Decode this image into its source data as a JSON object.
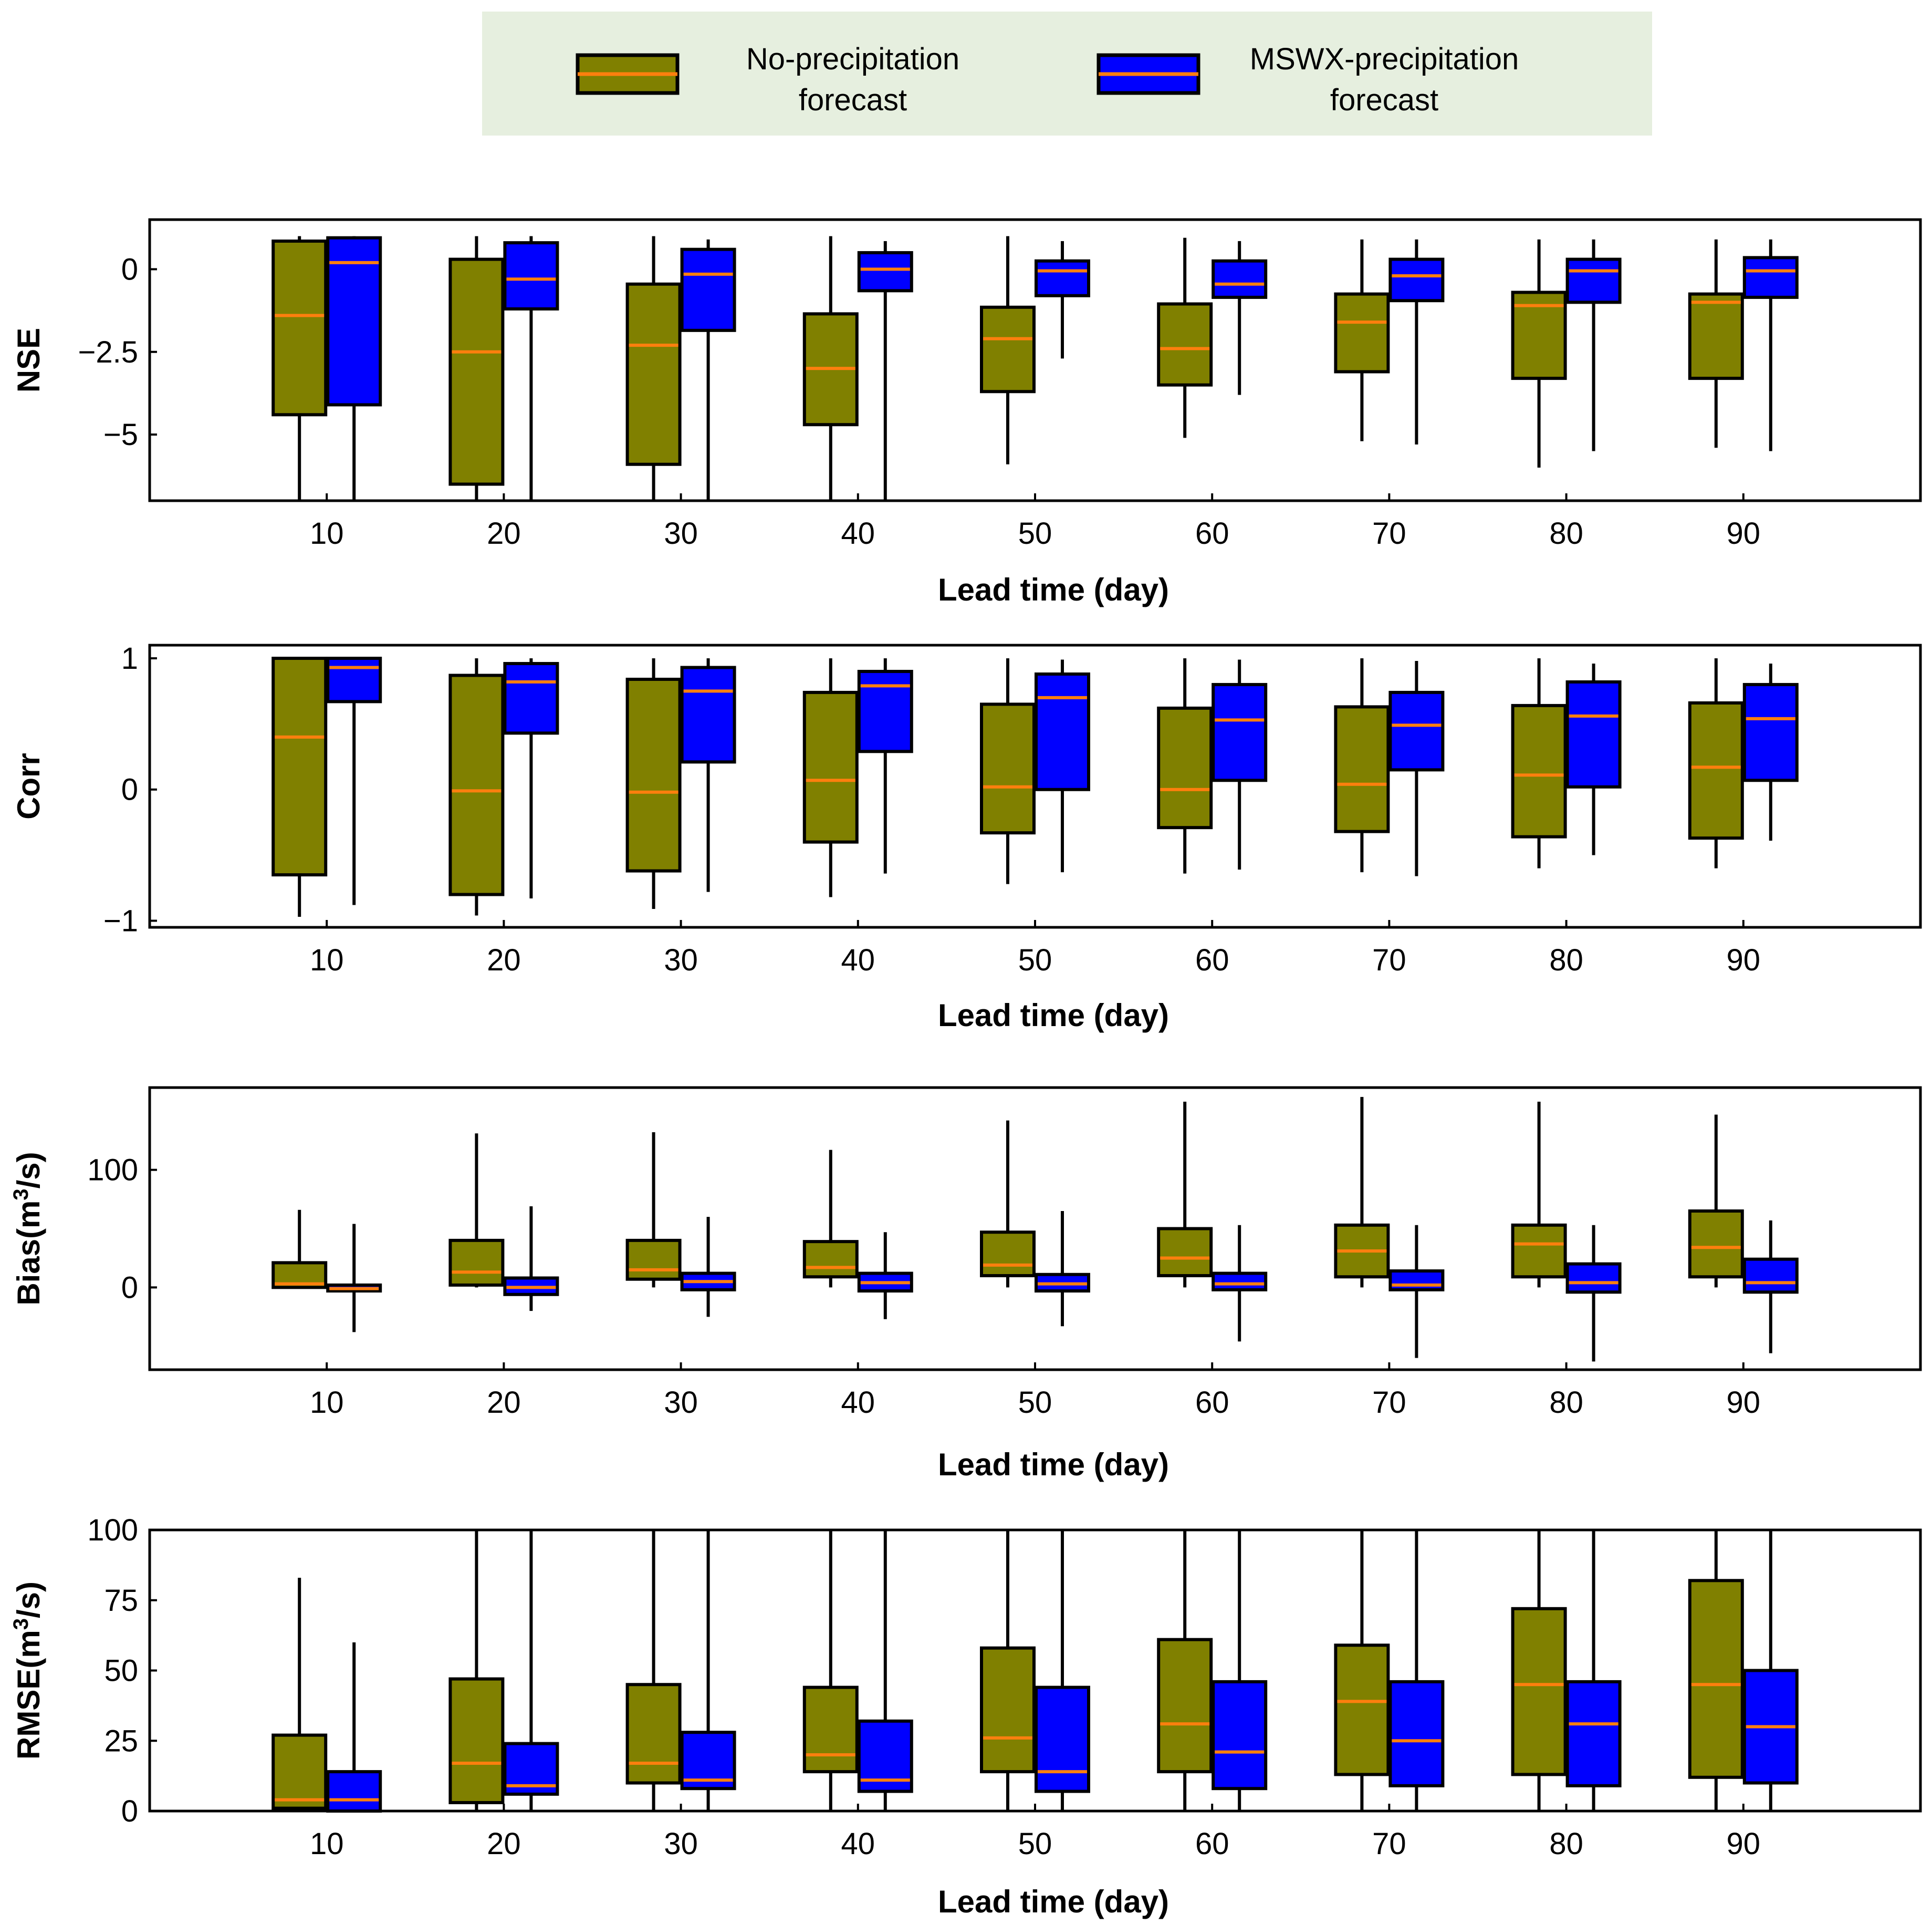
{
  "colors": {
    "no_precip": "#808000",
    "mswx": "#0000ff",
    "median": "#ff7f0e",
    "legend_bg": "#e6efdf",
    "edge": "#000000"
  },
  "legend": {
    "items": [
      {
        "key": "no_precip",
        "line1": "No-precipitation",
        "line2": "forecast"
      },
      {
        "key": "mswx",
        "line1": "MSWX-precipitation",
        "line2": "forecast"
      }
    ]
  },
  "chart_data": [
    {
      "type": "box",
      "id": "nse",
      "ylabel": "NSE",
      "xlabel": "Lead time (day)",
      "ylim": [
        -7,
        1.5
      ],
      "yticks": [
        0,
        -2.5,
        -5
      ],
      "ytick_labels": [
        "0",
        "−2.5",
        "−5"
      ],
      "xlim": [
        0,
        100
      ],
      "categories": [
        10,
        20,
        30,
        40,
        50,
        60,
        70,
        80,
        90
      ],
      "series": [
        {
          "name": "No-precipitation forecast",
          "key": "no_precip",
          "boxes": [
            {
              "low": -7.0,
              "q1": -4.4,
              "med": -1.4,
              "q3": 0.85,
              "high": 1.0
            },
            {
              "low": -7.0,
              "q1": -6.5,
              "med": -2.5,
              "q3": 0.3,
              "high": 1.0
            },
            {
              "low": -7.0,
              "q1": -5.9,
              "med": -2.3,
              "q3": -0.45,
              "high": 1.0
            },
            {
              "low": -7.0,
              "q1": -4.7,
              "med": -3.0,
              "q3": -1.35,
              "high": 1.0
            },
            {
              "low": -5.9,
              "q1": -3.7,
              "med": -2.1,
              "q3": -1.15,
              "high": 1.0
            },
            {
              "low": -5.1,
              "q1": -3.5,
              "med": -2.4,
              "q3": -1.05,
              "high": 0.95
            },
            {
              "low": -5.2,
              "q1": -3.1,
              "med": -1.6,
              "q3": -0.75,
              "high": 0.9
            },
            {
              "low": -6.0,
              "q1": -3.3,
              "med": -1.1,
              "q3": -0.7,
              "high": 0.9
            },
            {
              "low": -5.4,
              "q1": -3.3,
              "med": -1.0,
              "q3": -0.75,
              "high": 0.9
            }
          ]
        },
        {
          "name": "MSWX-precipitation forecast",
          "key": "mswx",
          "boxes": [
            {
              "low": -7.0,
              "q1": -4.1,
              "med": 0.2,
              "q3": 0.95,
              "high": 1.0
            },
            {
              "low": -7.0,
              "q1": -1.2,
              "med": -0.3,
              "q3": 0.8,
              "high": 1.0
            },
            {
              "low": -7.0,
              "q1": -1.85,
              "med": -0.15,
              "q3": 0.6,
              "high": 0.9
            },
            {
              "low": -7.0,
              "q1": -0.65,
              "med": 0.0,
              "q3": 0.5,
              "high": 0.85
            },
            {
              "low": -2.7,
              "q1": -0.8,
              "med": -0.05,
              "q3": 0.25,
              "high": 0.85
            },
            {
              "low": -3.8,
              "q1": -0.85,
              "med": -0.45,
              "q3": 0.25,
              "high": 0.85
            },
            {
              "low": -5.3,
              "q1": -0.95,
              "med": -0.2,
              "q3": 0.3,
              "high": 0.9
            },
            {
              "low": -5.5,
              "q1": -1.0,
              "med": -0.05,
              "q3": 0.3,
              "high": 0.9
            },
            {
              "low": -5.5,
              "q1": -0.85,
              "med": -0.05,
              "q3": 0.35,
              "high": 0.9
            }
          ]
        }
      ]
    },
    {
      "type": "box",
      "id": "corr",
      "ylabel": "Corr",
      "xlabel": "Lead time (day)",
      "ylim": [
        -1.05,
        1.1
      ],
      "yticks": [
        1,
        0,
        -1
      ],
      "ytick_labels": [
        "1",
        "0",
        "−1"
      ],
      "xlim": [
        0,
        100
      ],
      "categories": [
        10,
        20,
        30,
        40,
        50,
        60,
        70,
        80,
        90
      ],
      "series": [
        {
          "name": "No-precipitation forecast",
          "key": "no_precip",
          "boxes": [
            {
              "low": -0.97,
              "q1": -0.65,
              "med": 0.4,
              "q3": 1.0,
              "high": 1.0
            },
            {
              "low": -0.96,
              "q1": -0.8,
              "med": -0.01,
              "q3": 0.87,
              "high": 1.0
            },
            {
              "low": -0.91,
              "q1": -0.62,
              "med": -0.02,
              "q3": 0.84,
              "high": 1.0
            },
            {
              "low": -0.82,
              "q1": -0.4,
              "med": 0.07,
              "q3": 0.74,
              "high": 1.0
            },
            {
              "low": -0.72,
              "q1": -0.33,
              "med": 0.02,
              "q3": 0.65,
              "high": 1.0
            },
            {
              "low": -0.64,
              "q1": -0.29,
              "med": 0.0,
              "q3": 0.62,
              "high": 1.0
            },
            {
              "low": -0.63,
              "q1": -0.32,
              "med": 0.04,
              "q3": 0.63,
              "high": 1.0
            },
            {
              "low": -0.6,
              "q1": -0.36,
              "med": 0.11,
              "q3": 0.64,
              "high": 1.0
            },
            {
              "low": -0.6,
              "q1": -0.37,
              "med": 0.17,
              "q3": 0.66,
              "high": 1.0
            }
          ]
        },
        {
          "name": "MSWX-precipitation forecast",
          "key": "mswx",
          "boxes": [
            {
              "low": -0.88,
              "q1": 0.67,
              "med": 0.93,
              "q3": 1.0,
              "high": 1.0
            },
            {
              "low": -0.83,
              "q1": 0.43,
              "med": 0.82,
              "q3": 0.96,
              "high": 1.0
            },
            {
              "low": -0.78,
              "q1": 0.21,
              "med": 0.75,
              "q3": 0.93,
              "high": 1.0
            },
            {
              "low": -0.64,
              "q1": 0.29,
              "med": 0.79,
              "q3": 0.9,
              "high": 1.0
            },
            {
              "low": -0.63,
              "q1": 0.0,
              "med": 0.7,
              "q3": 0.88,
              "high": 0.99
            },
            {
              "low": -0.61,
              "q1": 0.07,
              "med": 0.53,
              "q3": 0.8,
              "high": 0.99
            },
            {
              "low": -0.66,
              "q1": 0.15,
              "med": 0.49,
              "q3": 0.74,
              "high": 0.98
            },
            {
              "low": -0.5,
              "q1": 0.02,
              "med": 0.56,
              "q3": 0.82,
              "high": 0.96
            },
            {
              "low": -0.39,
              "q1": 0.07,
              "med": 0.54,
              "q3": 0.8,
              "high": 0.96
            }
          ]
        }
      ]
    },
    {
      "type": "box",
      "id": "bias",
      "ylabel": "Bias(m",
      "ylabel_sup": "3",
      "ylabel_end": "/s)",
      "xlabel": "Lead time (day)",
      "ylim": [
        -70,
        170
      ],
      "yticks": [
        100,
        0
      ],
      "ytick_labels": [
        "100",
        "0"
      ],
      "xlim": [
        0,
        100
      ],
      "categories": [
        10,
        20,
        30,
        40,
        50,
        60,
        70,
        80,
        90
      ],
      "series": [
        {
          "name": "No-precipitation forecast",
          "key": "no_precip",
          "boxes": [
            {
              "low": 0,
              "q1": 0,
              "med": 3,
              "q3": 21,
              "high": 66
            },
            {
              "low": 0,
              "q1": 2,
              "med": 13,
              "q3": 40,
              "high": 131
            },
            {
              "low": 0,
              "q1": 7,
              "med": 15,
              "q3": 40,
              "high": 132
            },
            {
              "low": 0,
              "q1": 9,
              "med": 17,
              "q3": 39,
              "high": 117
            },
            {
              "low": 0,
              "q1": 10,
              "med": 19,
              "q3": 47,
              "high": 142
            },
            {
              "low": 0,
              "q1": 10,
              "med": 25,
              "q3": 50,
              "high": 158
            },
            {
              "low": 0,
              "q1": 9,
              "med": 31,
              "q3": 53,
              "high": 162
            },
            {
              "low": 0,
              "q1": 9,
              "med": 37,
              "q3": 53,
              "high": 158
            },
            {
              "low": 0,
              "q1": 9,
              "med": 34,
              "q3": 65,
              "high": 147
            }
          ]
        },
        {
          "name": "MSWX-precipitation forecast",
          "key": "mswx",
          "boxes": [
            {
              "low": -38,
              "q1": -3,
              "med": -1,
              "q3": 2,
              "high": 54
            },
            {
              "low": -20,
              "q1": -6,
              "med": 0,
              "q3": 8,
              "high": 69
            },
            {
              "low": -25,
              "q1": -2,
              "med": 5,
              "q3": 12,
              "high": 60
            },
            {
              "low": -27,
              "q1": -3,
              "med": 4,
              "q3": 12,
              "high": 47
            },
            {
              "low": -33,
              "q1": -3,
              "med": 3,
              "q3": 11,
              "high": 65
            },
            {
              "low": -46,
              "q1": -2,
              "med": 3,
              "q3": 12,
              "high": 53
            },
            {
              "low": -60,
              "q1": -2,
              "med": 2,
              "q3": 14,
              "high": 53
            },
            {
              "low": -63,
              "q1": -4,
              "med": 4,
              "q3": 20,
              "high": 53
            },
            {
              "low": -56,
              "q1": -4,
              "med": 4,
              "q3": 24,
              "high": 57
            }
          ]
        }
      ]
    },
    {
      "type": "box",
      "id": "rmse",
      "ylabel": "RMSE(m",
      "ylabel_sup": "3",
      "ylabel_end": "/s)",
      "xlabel": "Lead time (day)",
      "ylim": [
        0,
        100
      ],
      "yticks": [
        100,
        75,
        50,
        25,
        0
      ],
      "ytick_labels": [
        "100",
        "75",
        "50",
        "25",
        "0"
      ],
      "xlim": [
        0,
        100
      ],
      "categories": [
        10,
        20,
        30,
        40,
        50,
        60,
        70,
        80,
        90
      ],
      "series": [
        {
          "name": "No-precipitation forecast",
          "key": "no_precip",
          "boxes": [
            {
              "low": 0,
              "q1": 1,
              "med": 4,
              "q3": 27,
              "high": 83
            },
            {
              "low": 0,
              "q1": 3,
              "med": 17,
              "q3": 47,
              "high": 100
            },
            {
              "low": 0,
              "q1": 10,
              "med": 17,
              "q3": 45,
              "high": 100
            },
            {
              "low": 0,
              "q1": 14,
              "med": 20,
              "q3": 44,
              "high": 100
            },
            {
              "low": 0,
              "q1": 14,
              "med": 26,
              "q3": 58,
              "high": 100
            },
            {
              "low": 0,
              "q1": 14,
              "med": 31,
              "q3": 61,
              "high": 100
            },
            {
              "low": 0,
              "q1": 13,
              "med": 39,
              "q3": 59,
              "high": 100
            },
            {
              "low": 0,
              "q1": 13,
              "med": 45,
              "q3": 72,
              "high": 100
            },
            {
              "low": 0,
              "q1": 12,
              "med": 45,
              "q3": 82,
              "high": 100
            }
          ]
        },
        {
          "name": "MSWX-precipitation forecast",
          "key": "mswx",
          "boxes": [
            {
              "low": 0,
              "q1": 0,
              "med": 4,
              "q3": 14,
              "high": 60
            },
            {
              "low": 0,
              "q1": 6,
              "med": 9,
              "q3": 24,
              "high": 100
            },
            {
              "low": 0,
              "q1": 8,
              "med": 11,
              "q3": 28,
              "high": 100
            },
            {
              "low": 0,
              "q1": 7,
              "med": 11,
              "q3": 32,
              "high": 100
            },
            {
              "low": 0,
              "q1": 7,
              "med": 14,
              "q3": 44,
              "high": 100
            },
            {
              "low": 0,
              "q1": 8,
              "med": 21,
              "q3": 46,
              "high": 100
            },
            {
              "low": 0,
              "q1": 9,
              "med": 25,
              "q3": 46,
              "high": 100
            },
            {
              "low": 0,
              "q1": 9,
              "med": 31,
              "q3": 46,
              "high": 100
            },
            {
              "low": 0,
              "q1": 10,
              "med": 30,
              "q3": 50,
              "high": 100
            }
          ]
        }
      ]
    }
  ]
}
